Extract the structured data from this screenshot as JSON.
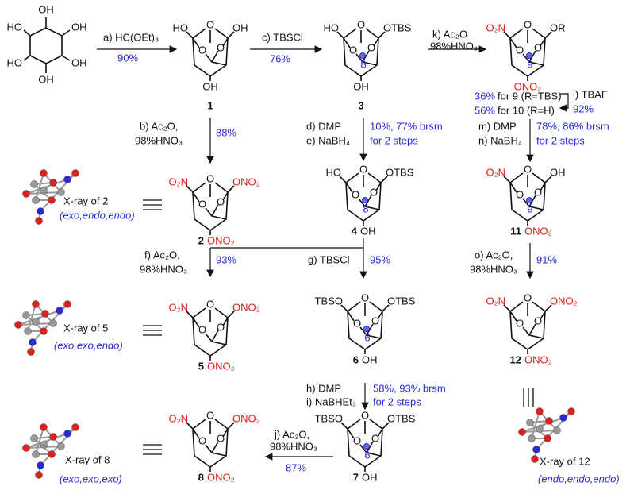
{
  "inositol": {
    "substituents": [
      "OH",
      "HO",
      "OH",
      "HO",
      "OH",
      "OH"
    ]
  },
  "ring_atom": "O",
  "compounds": [
    {
      "number": "1",
      "groups": [
        "HO",
        "OH",
        "OH"
      ]
    },
    {
      "number": "3",
      "groups": [
        "HO",
        "OTBS",
        "8",
        "OH"
      ]
    },
    {
      "groups": [
        "O₂N",
        "OR",
        "9",
        "ONO₂"
      ]
    },
    {
      "number": "2",
      "groups": [
        "O₂N",
        "ONO₂",
        "ONO₂"
      ]
    },
    {
      "number": "4",
      "groups": [
        "HO",
        "OTBS",
        "8",
        "OH"
      ]
    },
    {
      "number": "11",
      "groups": [
        "O₂N",
        "OH",
        "9",
        "ONO₂"
      ]
    },
    {
      "number": "5",
      "groups": [
        "O₂N",
        "ONO₂",
        "ONO₂"
      ]
    },
    {
      "number": "6",
      "groups": [
        "TBSO",
        "OTBS",
        "6",
        "OH"
      ]
    },
    {
      "number": "12",
      "groups": [
        "O₂N",
        "ONO₂",
        "ONO₂"
      ]
    },
    {
      "number": "8",
      "groups": [
        "O₂N",
        "ONO₂",
        "ONO₂"
      ]
    },
    {
      "number": "7",
      "groups": [
        "TBSO",
        "OTBS",
        "6",
        "OH"
      ]
    }
  ],
  "reactions": [
    {
      "step": "a) HC(OEt)₃",
      "yield": "90%"
    },
    {
      "step": "c) TBSCl",
      "yield": "76%"
    },
    {
      "step": "k) Ac₂O",
      "acid": "98%HNO₃"
    },
    {
      "step": "b) Ac₂O,",
      "acid": "98%HNO₃",
      "yield": "88%"
    },
    {
      "step": "d) DMP",
      "step2": "e) NaBH₄",
      "yield": "10%, 77% brsm",
      "note": "for 2 steps"
    },
    {
      "step": "l) TBAF",
      "yield": "92%"
    },
    {
      "step": "m)  DMP",
      "step2": "n) NaBH₄",
      "yield": "78%, 86% brsm",
      "note": "for 2 steps"
    },
    {
      "step": "f) Ac₂O,",
      "acid": "98%HNO₃",
      "yield": "93%"
    },
    {
      "step": "g) TBSCl",
      "yield": "95%"
    },
    {
      "step": "o) Ac₂O,",
      "acid": "98%HNO₃",
      "yield": "91%"
    },
    {
      "step": "h) DMP",
      "step2": "i) NaBHEt₃",
      "yield": "58%, 93% brsm",
      "note": "for 2 steps"
    },
    {
      "step": "j) Ac₂O,",
      "acid": "98%HNO₃",
      "yield": "87%"
    }
  ],
  "outcomes": [
    {
      "yield": "36%",
      "text": "for 9 (R=TBS)"
    },
    {
      "yield": "56%",
      "text": "for 10 (R=H)"
    }
  ],
  "xray": [
    {
      "caption": "X-ray of 2",
      "config": "(exo,endo,endo)"
    },
    {
      "caption": "X-ray of 5",
      "config": "(exo,exo,endo)"
    },
    {
      "caption": "X-ray of 8",
      "config": "(exo,exo,exo)"
    },
    {
      "caption": "X-ray of 12",
      "config": "(endo,endo,endo)"
    }
  ]
}
